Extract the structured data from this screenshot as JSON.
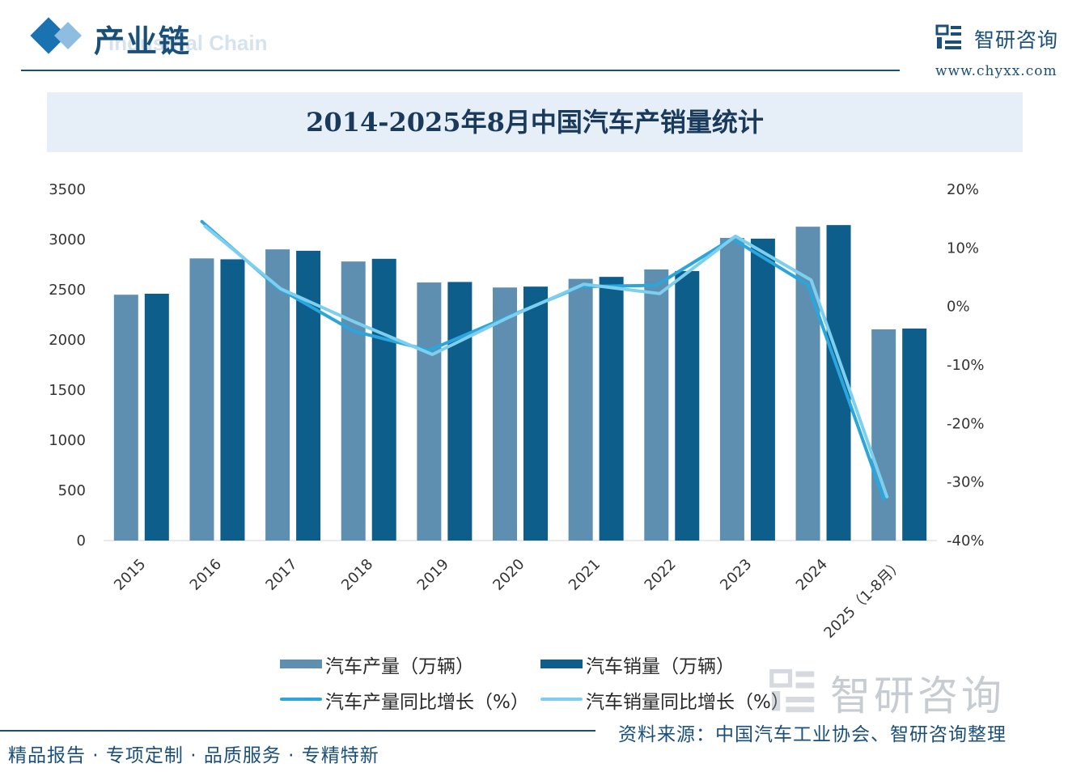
{
  "header": {
    "section_title": "产业链",
    "section_subtitle": "Industrial Chain",
    "brand_name": "智研咨询",
    "brand_url": "www.chyxx.com"
  },
  "colors": {
    "production_bar": "#5f8fb0",
    "sales_bar": "#0e5e8c",
    "production_growth_line": "#2ba6dc",
    "sales_growth_line": "#7ccfee"
  },
  "chart_data": {
    "type": "bar",
    "title": "2014-2025年8月中国汽车产销量统计",
    "categories": [
      "2015",
      "2016",
      "2017",
      "2018",
      "2019",
      "2020",
      "2021",
      "2022",
      "2023",
      "2024",
      "2025（1-8月）"
    ],
    "series": [
      {
        "name": "汽车产量（万辆）",
        "kind": "bar",
        "axis": "left",
        "values": [
          2450,
          2812,
          2902,
          2781,
          2572,
          2522,
          2608,
          2702,
          3016,
          3128,
          2105
        ]
      },
      {
        "name": "汽车销量（万辆）",
        "kind": "bar",
        "axis": "left",
        "values": [
          2460,
          2803,
          2888,
          2808,
          2577,
          2531,
          2628,
          2686,
          3009,
          3144,
          2113
        ]
      },
      {
        "name": "汽车产量同比增长（%）",
        "kind": "line",
        "axis": "right",
        "values": [
          null,
          14.5,
          3.2,
          -4.2,
          -7.5,
          -2.0,
          3.4,
          3.6,
          11.6,
          3.7,
          -32.9
        ]
      },
      {
        "name": "汽车销量同比增长（%）",
        "kind": "line",
        "axis": "right",
        "values": [
          null,
          13.7,
          3.0,
          -2.8,
          -8.2,
          -1.9,
          3.8,
          2.2,
          12.0,
          4.5,
          -32.5
        ]
      }
    ],
    "left_axis": {
      "min": 0,
      "max": 3500,
      "step": 500,
      "ticks": [
        "0",
        "500",
        "1000",
        "1500",
        "2000",
        "2500",
        "3000",
        "3500"
      ]
    },
    "right_axis": {
      "min": -40,
      "max": 20,
      "step": 10,
      "ticks": [
        "-40%",
        "-30%",
        "-20%",
        "-10%",
        "0%",
        "10%",
        "20%"
      ]
    },
    "grid": false,
    "legend_position": "bottom"
  },
  "footer": {
    "source": "资料来源：中国汽车工业协会、智研咨询整理",
    "slogan": "精品报告 · 专项定制 · 品质服务 · 专精特新",
    "watermark": "智研咨询"
  }
}
